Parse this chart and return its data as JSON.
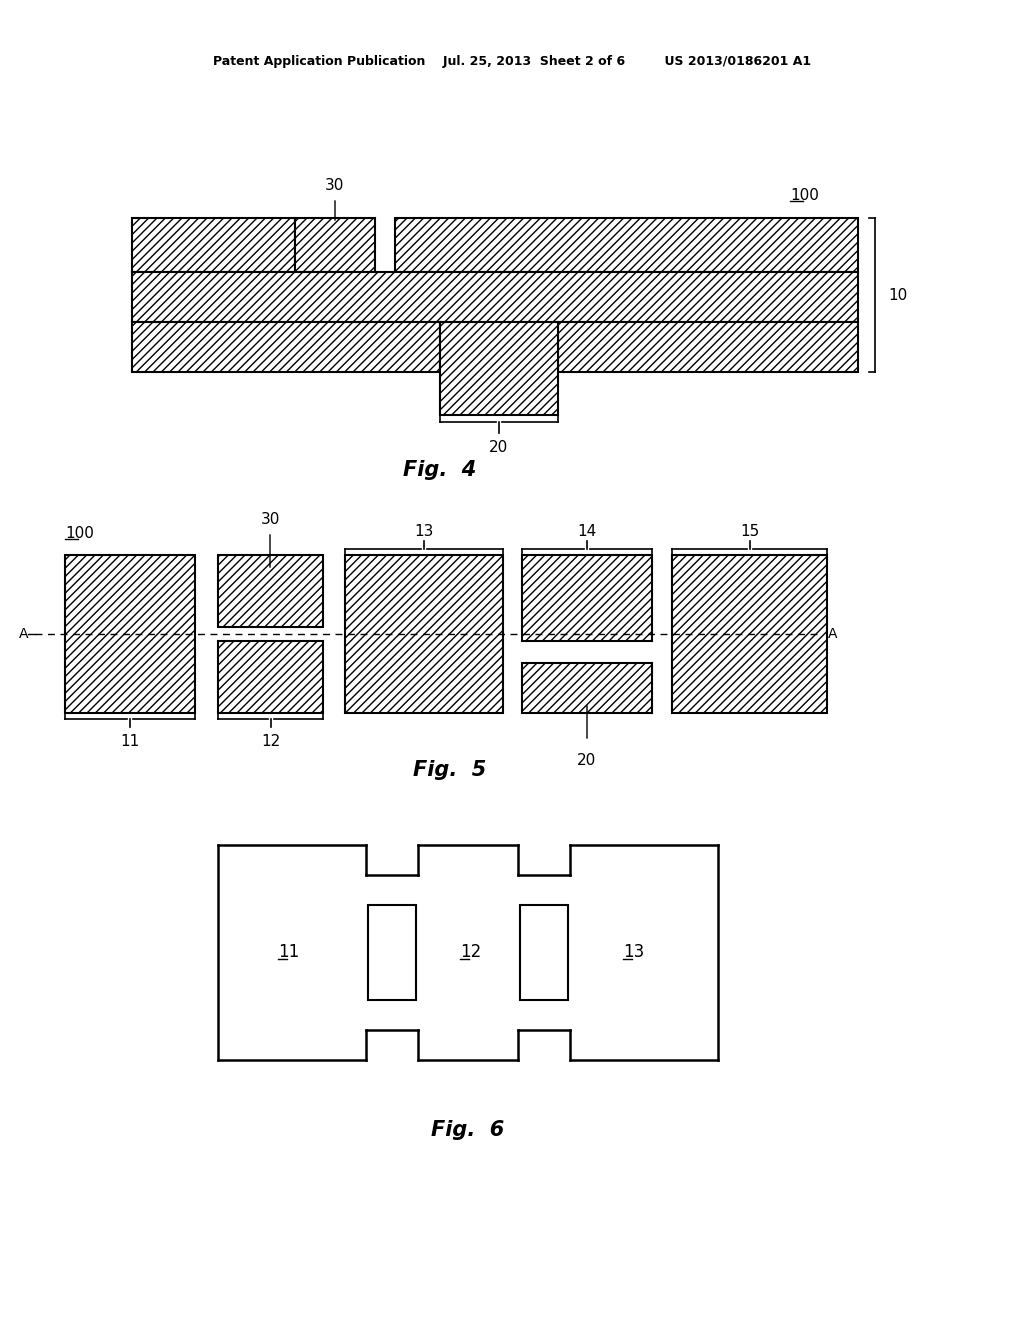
{
  "bg_color": "#ffffff",
  "header": "Patent Application Publication    Jul. 25, 2013  Sheet 2 of 6         US 2013/0186201 A1",
  "fig4_title": "Fig.  4",
  "fig5_title": "Fig.  5",
  "fig6_title": "Fig.  6"
}
